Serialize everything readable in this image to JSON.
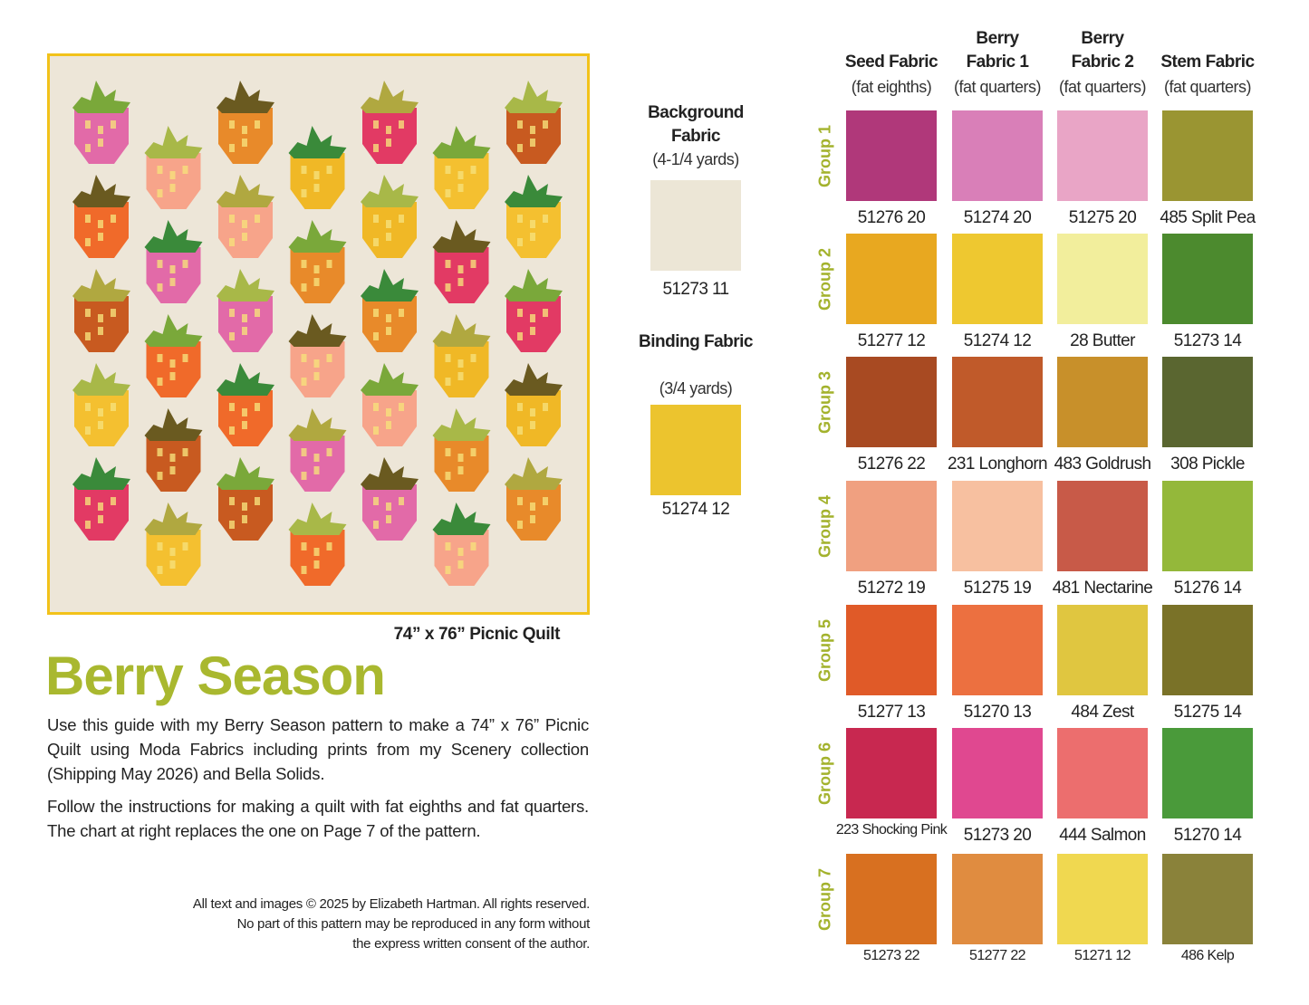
{
  "quilt": {
    "caption": "74” x 76” Picnic Quilt"
  },
  "title": "Berry Season",
  "intro": [
    "Use this guide with my Berry Season pattern to make a 74” x 76” Picnic Quilt using Moda Fabrics including prints from my Scenery collection (Shipping May 2026) and Bella Solids.",
    "Follow the instructions for making a quilt with fat eighths and fat quarters. The chart at right replaces the one on Page 7 of the pattern."
  ],
  "copyright": [
    "All text and images © 2025 by Elizabeth Hartman. All rights reserved.",
    "No part of this pattern may be reproduced in any form without",
    "the express written consent of the author."
  ],
  "background": {
    "name": "Background Fabric",
    "amount": "(4-1/4 yards)",
    "fabric": "51273 11"
  },
  "binding": {
    "name": "Binding Fabric",
    "amount": "(3/4 yards)",
    "fabric": "51274 12"
  },
  "columns": [
    {
      "name": "Seed Fabric",
      "amount": "(fat eighths)"
    },
    {
      "name": "Berry Fabric 1",
      "amount": "(fat quarters)"
    },
    {
      "name": "Berry Fabric 2",
      "amount": "(fat quarters)"
    },
    {
      "name": "Stem Fabric",
      "amount": "(fat quarters)"
    }
  ],
  "groups": [
    {
      "label": "Group 1",
      "fabrics": [
        "51276 20",
        "51274 20",
        "51275 20",
        "485 Split Pea"
      ]
    },
    {
      "label": "Group 2",
      "fabrics": [
        "51277 12",
        "51274 12",
        "28 Butter",
        "51273 14"
      ]
    },
    {
      "label": "Group 3",
      "fabrics": [
        "51276 22",
        "231 Longhorn",
        "483 Goldrush",
        "308 Pickle"
      ]
    },
    {
      "label": "Group 4",
      "fabrics": [
        "51272 19",
        "51275 19",
        "481 Nectarine",
        "51276 14"
      ]
    },
    {
      "label": "Group 5",
      "fabrics": [
        "51277 13",
        "51270 13",
        "484 Zest",
        "51275 14"
      ]
    },
    {
      "label": "Group 6",
      "fabrics": [
        "223 Shocking Pink",
        "51273 20",
        "444 Salmon",
        "51270 14"
      ]
    },
    {
      "label": "Group 7",
      "fabrics": [
        "51273 22",
        "51277 22",
        "51271 12",
        "486 Kelp"
      ]
    }
  ]
}
